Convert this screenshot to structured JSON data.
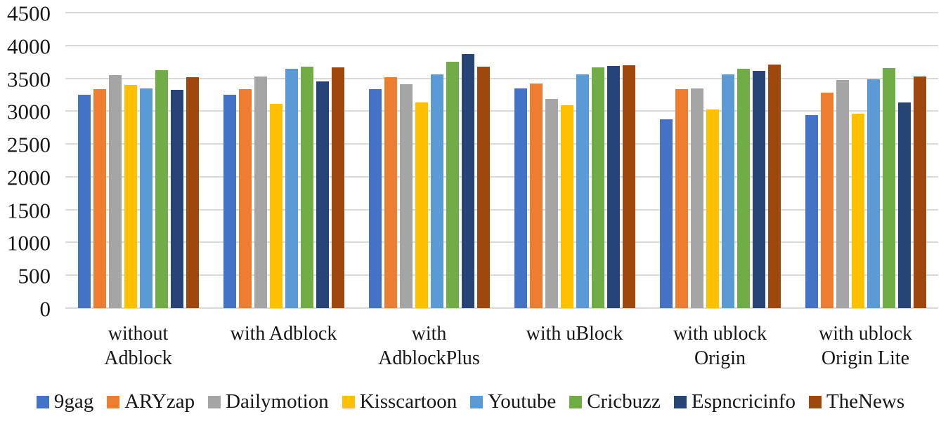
{
  "chart_data": {
    "type": "bar",
    "title": "",
    "xlabel": "",
    "ylabel": "",
    "ylim": [
      0,
      4500
    ],
    "ytick_step": 500,
    "ytick_labels": [
      "0",
      "500",
      "1000",
      "1500",
      "2000",
      "2500",
      "3000",
      "3500",
      "4000",
      "4500"
    ],
    "grid": "horizontal",
    "legend_position": "bottom",
    "categories": [
      "without\nAdblock",
      "with Adblock",
      "with\nAdblockPlus",
      "with uBlock",
      "with ublock\nOrigin",
      "with ublock\nOrigin Lite"
    ],
    "series": [
      {
        "name": "9gag",
        "color": "#4472C4",
        "values": [
          3250,
          3250,
          3330,
          3350,
          2880,
          2940
        ]
      },
      {
        "name": "ARYzap",
        "color": "#ED7D31",
        "values": [
          3340,
          3340,
          3520,
          3420,
          3330,
          3280
        ]
      },
      {
        "name": "Dailymotion",
        "color": "#A5A5A5",
        "values": [
          3550,
          3530,
          3410,
          3190,
          3350,
          3470
        ]
      },
      {
        "name": "Kisscartoon",
        "color": "#FFC000",
        "values": [
          3400,
          3110,
          3130,
          3090,
          3020,
          2960
        ]
      },
      {
        "name": "Youtube",
        "color": "#5B9BD5",
        "values": [
          3350,
          3640,
          3560,
          3560,
          3560,
          3480
        ]
      },
      {
        "name": "Cricbuzz",
        "color": "#70AD47",
        "values": [
          3620,
          3680,
          3750,
          3670,
          3650,
          3660
        ]
      },
      {
        "name": "Espncricinfo",
        "color": "#264478",
        "values": [
          3320,
          3450,
          3870,
          3690,
          3610,
          3130
        ]
      },
      {
        "name": "TheNews",
        "color": "#9E480E",
        "values": [
          3520,
          3670,
          3680,
          3700,
          3710,
          3530
        ]
      }
    ],
    "colors": {
      "gridline": "#d9d9d9",
      "text": "#171717",
      "background": "#ffffff"
    }
  }
}
